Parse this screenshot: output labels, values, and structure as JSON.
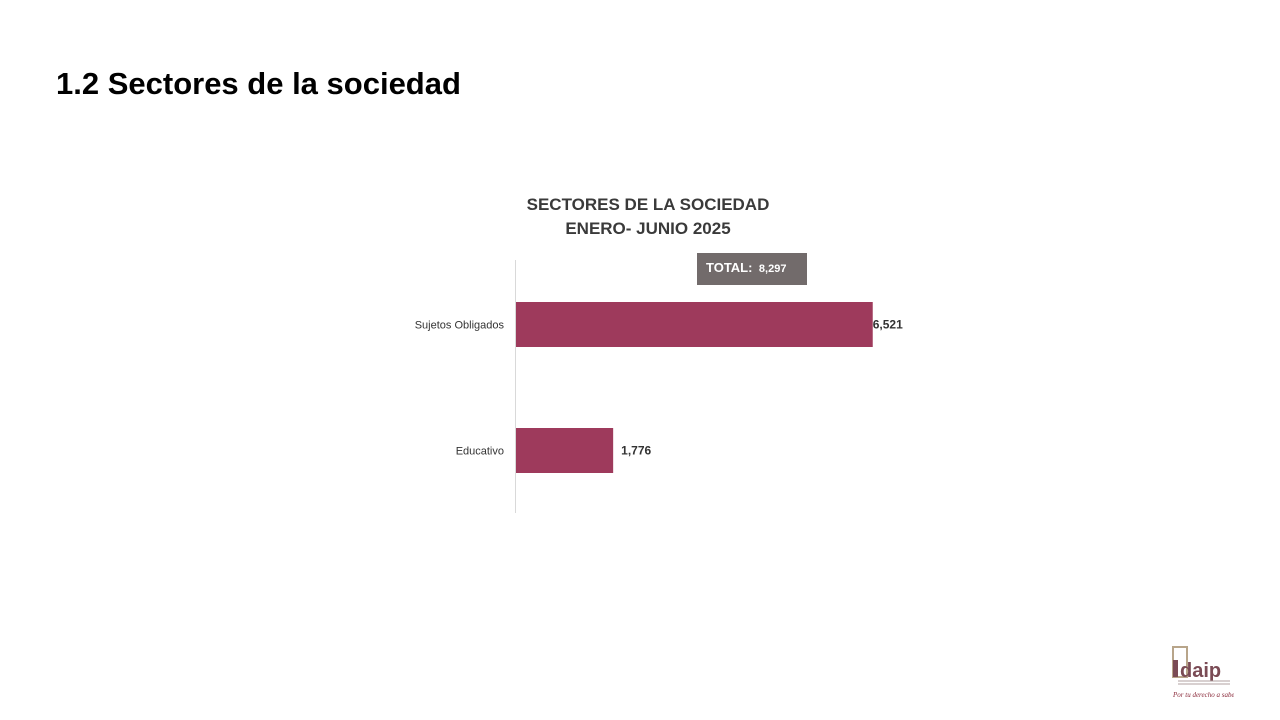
{
  "slide": {
    "title": "1.2 Sectores de la sociedad"
  },
  "chart_data": {
    "type": "bar",
    "orientation": "horizontal",
    "title": [
      "SECTORES DE LA SOCIEDAD",
      "ENERO- JUNIO 2025"
    ],
    "categories": [
      "Sujetos Obligados",
      "Educativo"
    ],
    "values": [
      6521,
      1776
    ],
    "value_labels": [
      "6,521",
      "1,776"
    ],
    "total": {
      "label": "TOTAL:",
      "value": "8,297"
    },
    "bar_color": "#9e3a5c",
    "total_box_color": "#726b6b",
    "xlim": [
      0,
      6800
    ],
    "grid": false,
    "legend": "none"
  },
  "logo": {
    "name": "idaip",
    "text": "idaip",
    "tagline": "Por tu derecho a saber",
    "color": "#7a4b55"
  }
}
